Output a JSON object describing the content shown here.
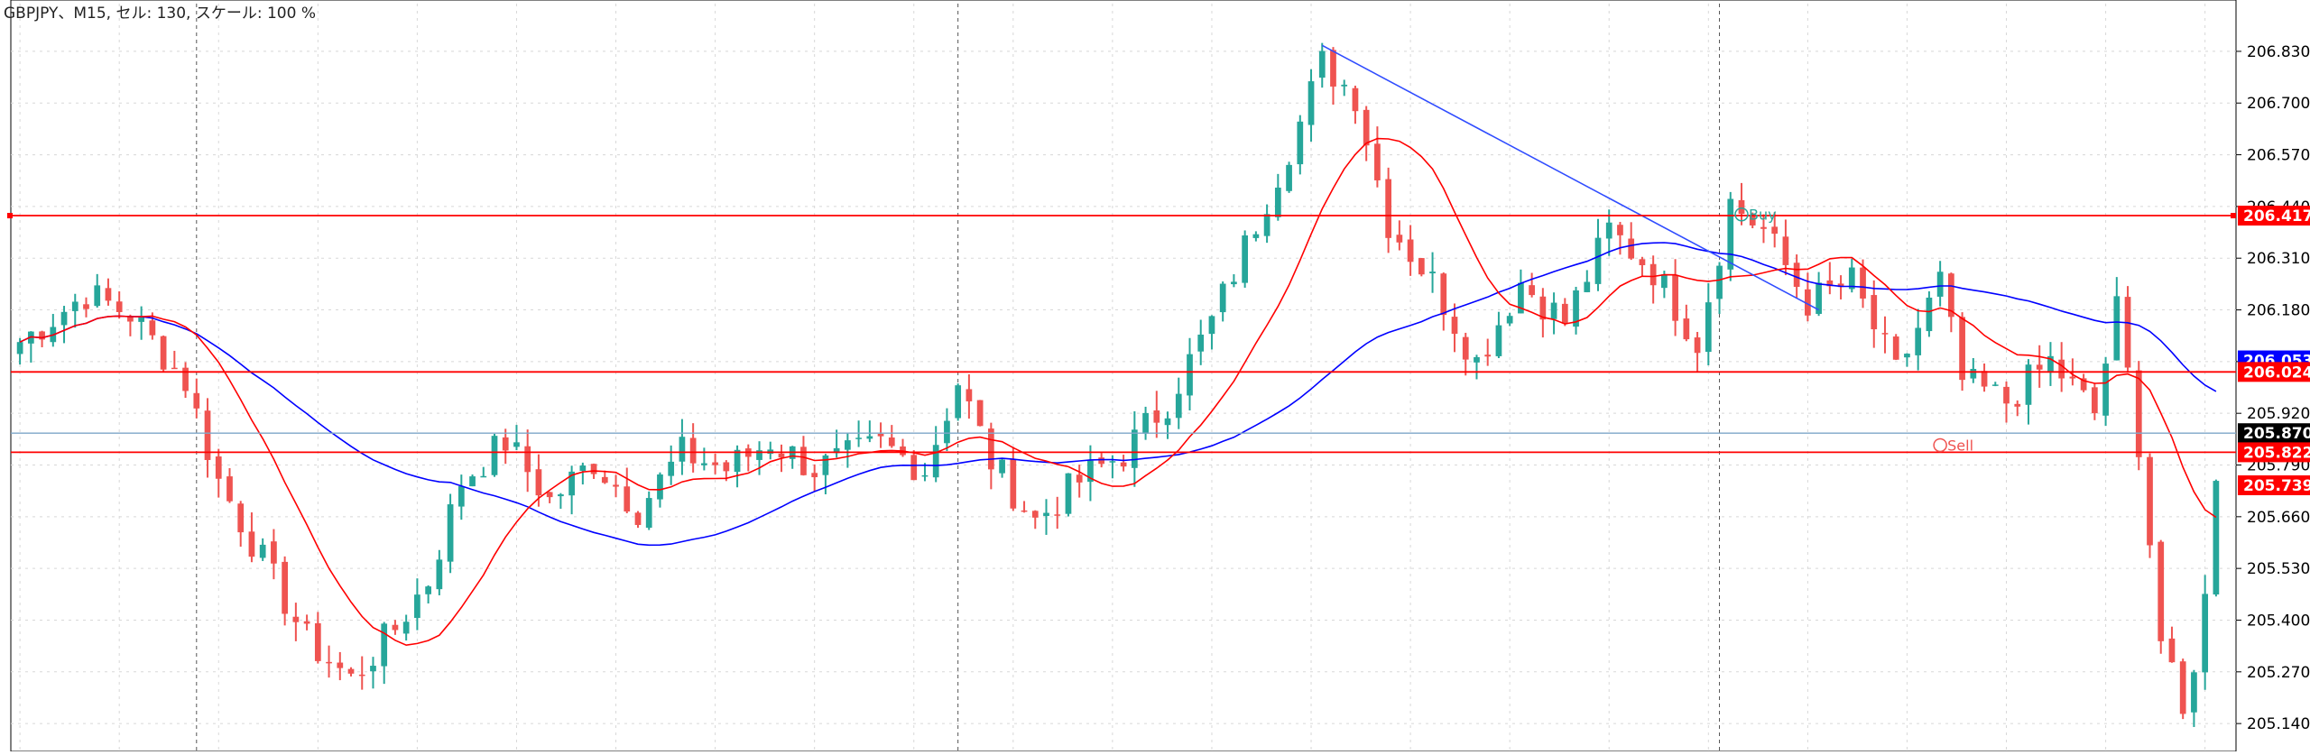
{
  "header": {
    "info": "GBPJPY、M15, セル: 130, スケール: 100 %"
  },
  "colors": {
    "background": "#ffffff",
    "grid": "#d8d8d8",
    "bull": "#26a69a",
    "bear": "#ef5350",
    "ma_fast": "#ff0000",
    "ma_slow": "#0000ff",
    "hline": "#ff0000",
    "bid_line": "#7ea6c8",
    "trendline": "#2f4cff",
    "tag_red": "#ff0000",
    "tag_black": "#000000",
    "tag_blue": "#0000ff"
  },
  "chart_data": {
    "type": "candlestick",
    "symbol": "GBPJPY",
    "timeframe": "M15",
    "ylim": [
      205.07,
      206.95
    ],
    "y_ticks": [
      "206.830",
      "206.700",
      "206.570",
      "206.440",
      "206.310",
      "206.180",
      "206.050",
      "205.920",
      "205.790",
      "205.660",
      "205.530",
      "205.400",
      "205.270",
      "205.140"
    ],
    "grid": true,
    "num_bars": 130,
    "vertical_dividers_bar": [
      16,
      85,
      154
    ],
    "price_tags": [
      {
        "label": "206.417",
        "value": 206.417,
        "color": "red"
      },
      {
        "label": "206.053",
        "value": 206.053,
        "color": "blue"
      },
      {
        "label": "206.024",
        "value": 206.024,
        "color": "red"
      },
      {
        "label": "205.870",
        "value": 205.87,
        "color": "black"
      },
      {
        "label": "205.822",
        "value": 205.822,
        "color": "red"
      },
      {
        "label": "205.739",
        "value": 205.739,
        "color": "red"
      }
    ],
    "horizontal_lines": [
      206.417,
      206.024,
      205.822
    ],
    "bid_line": 205.87,
    "trendline": {
      "from": {
        "bar": 118,
        "price": 206.845
      },
      "to": {
        "bar": 163,
        "price": 206.18
      }
    },
    "markers": [
      {
        "label": "Buy",
        "bar": 156,
        "price": 206.42
      },
      {
        "label": "Sell",
        "bar": 174,
        "price": 205.84
      }
    ],
    "anchor_path": [
      [
        0,
        206.1
      ],
      [
        6,
        206.22
      ],
      [
        10,
        206.17
      ],
      [
        15,
        206.0
      ],
      [
        18,
        205.75
      ],
      [
        22,
        205.55
      ],
      [
        26,
        205.35
      ],
      [
        30,
        205.25
      ],
      [
        34,
        205.38
      ],
      [
        37,
        205.5
      ],
      [
        40,
        205.75
      ],
      [
        44,
        205.85
      ],
      [
        48,
        205.7
      ],
      [
        52,
        205.8
      ],
      [
        56,
        205.68
      ],
      [
        60,
        205.82
      ],
      [
        64,
        205.78
      ],
      [
        68,
        205.85
      ],
      [
        72,
        205.78
      ],
      [
        78,
        205.84
      ],
      [
        82,
        205.78
      ],
      [
        85,
        206.0
      ],
      [
        88,
        205.8
      ],
      [
        92,
        205.65
      ],
      [
        96,
        205.75
      ],
      [
        100,
        205.82
      ],
      [
        104,
        205.95
      ],
      [
        108,
        206.15
      ],
      [
        112,
        206.4
      ],
      [
        116,
        206.65
      ],
      [
        118,
        206.8
      ],
      [
        121,
        206.72
      ],
      [
        124,
        206.4
      ],
      [
        128,
        206.25
      ],
      [
        132,
        206.05
      ],
      [
        136,
        206.25
      ],
      [
        140,
        206.15
      ],
      [
        144,
        206.38
      ],
      [
        148,
        206.28
      ],
      [
        152,
        206.1
      ],
      [
        155,
        206.45
      ],
      [
        158,
        206.38
      ],
      [
        162,
        206.2
      ],
      [
        166,
        206.25
      ],
      [
        170,
        206.02
      ],
      [
        174,
        206.25
      ],
      [
        176,
        206.0
      ],
      [
        180,
        205.95
      ],
      [
        184,
        206.05
      ],
      [
        188,
        205.92
      ],
      [
        190,
        206.18
      ],
      [
        192,
        205.85
      ],
      [
        194,
        205.35
      ],
      [
        196,
        205.15
      ],
      [
        198,
        205.45
      ],
      [
        199,
        205.78
      ]
    ]
  }
}
